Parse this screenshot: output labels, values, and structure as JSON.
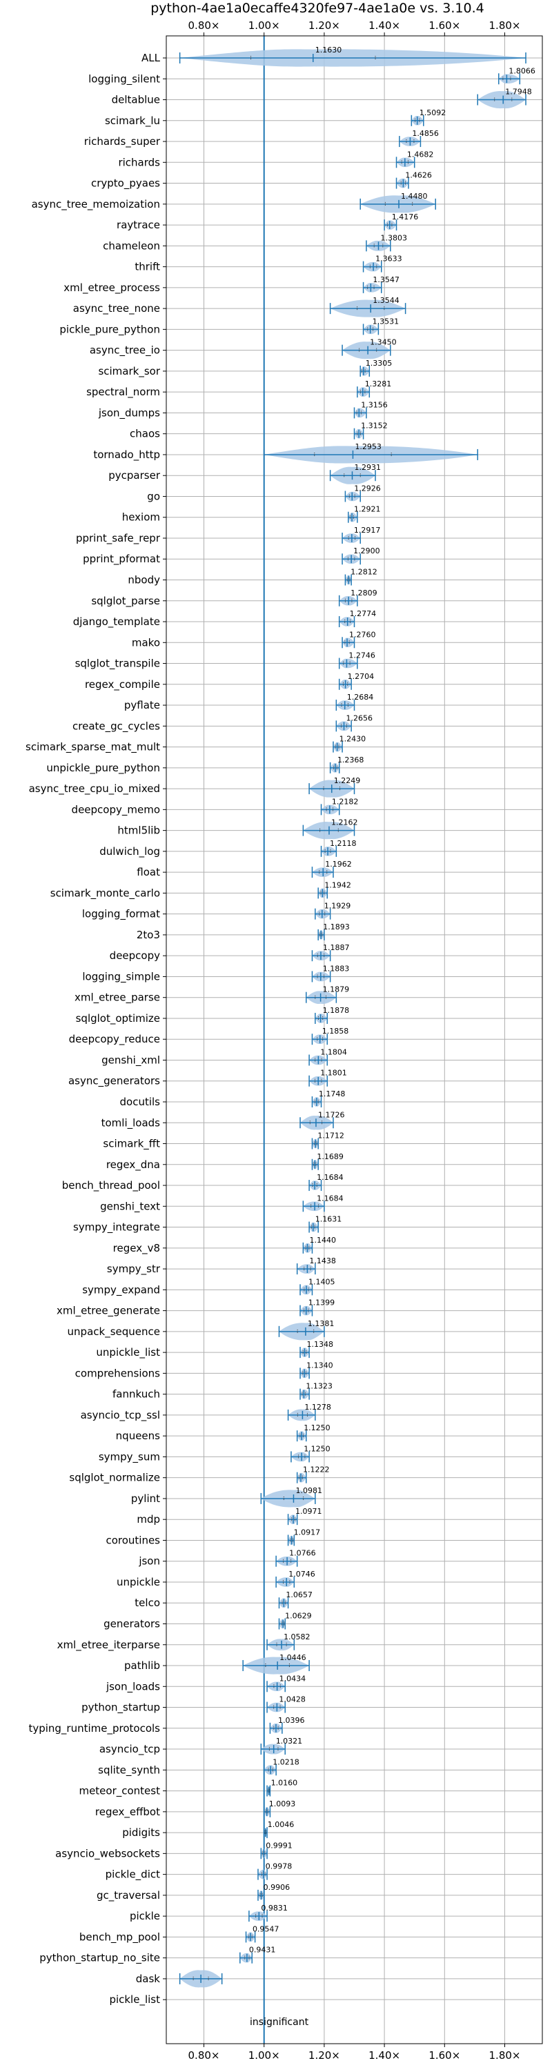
{
  "chart_data": {
    "type": "violin",
    "title": "python-4ae1a0ecaffe4320fe97-4ae1a0e vs. 3.10.4",
    "xlabel": "",
    "ylabel": "",
    "xlim": [
      0.675,
      1.925
    ],
    "x_ticks": [
      0.8,
      1.0,
      1.2,
      1.4,
      1.6,
      1.8
    ],
    "x_tick_labels": [
      "0.80×",
      "1.00×",
      "1.20×",
      "1.40×",
      "1.60×",
      "1.80×"
    ],
    "reference_line": 1.0,
    "grid": true,
    "color": "#1f77b4",
    "fill_color": "#a9c8e6",
    "insignificant_note": "insignificant",
    "benchmarks": [
      {
        "name": "ALL",
        "value": 1.163,
        "label": "1.1630",
        "min": 0.72,
        "max": 1.87
      },
      {
        "name": "logging_silent",
        "value": 1.8066,
        "label": "1.8066",
        "min": 1.78,
        "max": 1.85
      },
      {
        "name": "deltablue",
        "value": 1.7948,
        "label": "1.7948",
        "min": 1.71,
        "max": 1.87
      },
      {
        "name": "scimark_lu",
        "value": 1.5092,
        "label": "1.5092",
        "min": 1.49,
        "max": 1.53
      },
      {
        "name": "richards_super",
        "value": 1.4856,
        "label": "1.4856",
        "min": 1.45,
        "max": 1.52
      },
      {
        "name": "richards",
        "value": 1.4682,
        "label": "1.4682",
        "min": 1.44,
        "max": 1.5
      },
      {
        "name": "crypto_pyaes",
        "value": 1.4626,
        "label": "1.4626",
        "min": 1.44,
        "max": 1.48
      },
      {
        "name": "async_tree_memoization",
        "value": 1.448,
        "label": "1.4480",
        "min": 1.32,
        "max": 1.57
      },
      {
        "name": "raytrace",
        "value": 1.4176,
        "label": "1.4176",
        "min": 1.4,
        "max": 1.44
      },
      {
        "name": "chameleon",
        "value": 1.3803,
        "label": "1.3803",
        "min": 1.34,
        "max": 1.42
      },
      {
        "name": "thrift",
        "value": 1.3633,
        "label": "1.3633",
        "min": 1.33,
        "max": 1.39
      },
      {
        "name": "xml_etree_process",
        "value": 1.3547,
        "label": "1.3547",
        "min": 1.33,
        "max": 1.39
      },
      {
        "name": "async_tree_none",
        "value": 1.3544,
        "label": "1.3544",
        "min": 1.22,
        "max": 1.47
      },
      {
        "name": "pickle_pure_python",
        "value": 1.3531,
        "label": "1.3531",
        "min": 1.33,
        "max": 1.38
      },
      {
        "name": "async_tree_io",
        "value": 1.345,
        "label": "1.3450",
        "min": 1.26,
        "max": 1.42
      },
      {
        "name": "scimark_sor",
        "value": 1.3305,
        "label": "1.3305",
        "min": 1.32,
        "max": 1.35
      },
      {
        "name": "spectral_norm",
        "value": 1.3281,
        "label": "1.3281",
        "min": 1.31,
        "max": 1.35
      },
      {
        "name": "json_dumps",
        "value": 1.3156,
        "label": "1.3156",
        "min": 1.3,
        "max": 1.34
      },
      {
        "name": "chaos",
        "value": 1.3152,
        "label": "1.3152",
        "min": 1.3,
        "max": 1.33
      },
      {
        "name": "tornado_http",
        "value": 1.2953,
        "label": "1.2953",
        "min": 1.0,
        "max": 1.71
      },
      {
        "name": "pycparser",
        "value": 1.2931,
        "label": "1.2931",
        "min": 1.22,
        "max": 1.37
      },
      {
        "name": "go",
        "value": 1.2926,
        "label": "1.2926",
        "min": 1.27,
        "max": 1.32
      },
      {
        "name": "hexiom",
        "value": 1.2921,
        "label": "1.2921",
        "min": 1.28,
        "max": 1.31
      },
      {
        "name": "pprint_safe_repr",
        "value": 1.2917,
        "label": "1.2917",
        "min": 1.26,
        "max": 1.32
      },
      {
        "name": "pprint_pformat",
        "value": 1.29,
        "label": "1.2900",
        "min": 1.26,
        "max": 1.32
      },
      {
        "name": "nbody",
        "value": 1.2812,
        "label": "1.2812",
        "min": 1.27,
        "max": 1.29
      },
      {
        "name": "sqlglot_parse",
        "value": 1.2809,
        "label": "1.2809",
        "min": 1.25,
        "max": 1.31
      },
      {
        "name": "django_template",
        "value": 1.2774,
        "label": "1.2774",
        "min": 1.25,
        "max": 1.3
      },
      {
        "name": "mako",
        "value": 1.276,
        "label": "1.2760",
        "min": 1.26,
        "max": 1.3
      },
      {
        "name": "sqlglot_transpile",
        "value": 1.2746,
        "label": "1.2746",
        "min": 1.25,
        "max": 1.31
      },
      {
        "name": "regex_compile",
        "value": 1.2704,
        "label": "1.2704",
        "min": 1.25,
        "max": 1.29
      },
      {
        "name": "pyflate",
        "value": 1.2684,
        "label": "1.2684",
        "min": 1.24,
        "max": 1.3
      },
      {
        "name": "create_gc_cycles",
        "value": 1.2656,
        "label": "1.2656",
        "min": 1.24,
        "max": 1.29
      },
      {
        "name": "scimark_sparse_mat_mult",
        "value": 1.243,
        "label": "1.2430",
        "min": 1.23,
        "max": 1.26
      },
      {
        "name": "unpickle_pure_python",
        "value": 1.2368,
        "label": "1.2368",
        "min": 1.22,
        "max": 1.25
      },
      {
        "name": "async_tree_cpu_io_mixed",
        "value": 1.2249,
        "label": "1.2249",
        "min": 1.15,
        "max": 1.3
      },
      {
        "name": "deepcopy_memo",
        "value": 1.2182,
        "label": "1.2182",
        "min": 1.19,
        "max": 1.25
      },
      {
        "name": "html5lib",
        "value": 1.2162,
        "label": "1.2162",
        "min": 1.13,
        "max": 1.3
      },
      {
        "name": "dulwich_log",
        "value": 1.2118,
        "label": "1.2118",
        "min": 1.19,
        "max": 1.24
      },
      {
        "name": "float",
        "value": 1.1962,
        "label": "1.1962",
        "min": 1.16,
        "max": 1.23
      },
      {
        "name": "scimark_monte_carlo",
        "value": 1.1942,
        "label": "1.1942",
        "min": 1.18,
        "max": 1.21
      },
      {
        "name": "logging_format",
        "value": 1.1929,
        "label": "1.1929",
        "min": 1.17,
        "max": 1.22
      },
      {
        "name": "2to3",
        "value": 1.1893,
        "label": "1.1893",
        "min": 1.18,
        "max": 1.2
      },
      {
        "name": "deepcopy",
        "value": 1.1887,
        "label": "1.1887",
        "min": 1.16,
        "max": 1.22
      },
      {
        "name": "logging_simple",
        "value": 1.1883,
        "label": "1.1883",
        "min": 1.16,
        "max": 1.22
      },
      {
        "name": "xml_etree_parse",
        "value": 1.1879,
        "label": "1.1879",
        "min": 1.14,
        "max": 1.24
      },
      {
        "name": "sqlglot_optimize",
        "value": 1.1878,
        "label": "1.1878",
        "min": 1.17,
        "max": 1.21
      },
      {
        "name": "deepcopy_reduce",
        "value": 1.1858,
        "label": "1.1858",
        "min": 1.16,
        "max": 1.21
      },
      {
        "name": "genshi_xml",
        "value": 1.1804,
        "label": "1.1804",
        "min": 1.15,
        "max": 1.21
      },
      {
        "name": "async_generators",
        "value": 1.1801,
        "label": "1.1801",
        "min": 1.15,
        "max": 1.21
      },
      {
        "name": "docutils",
        "value": 1.1748,
        "label": "1.1748",
        "min": 1.16,
        "max": 1.19
      },
      {
        "name": "tomli_loads",
        "value": 1.1726,
        "label": "1.1726",
        "min": 1.12,
        "max": 1.23
      },
      {
        "name": "scimark_fft",
        "value": 1.1712,
        "label": "1.1712",
        "min": 1.16,
        "max": 1.18
      },
      {
        "name": "regex_dna",
        "value": 1.1689,
        "label": "1.1689",
        "min": 1.16,
        "max": 1.18
      },
      {
        "name": "bench_thread_pool",
        "value": 1.1684,
        "label": "1.1684",
        "min": 1.15,
        "max": 1.19
      },
      {
        "name": "genshi_text",
        "value": 1.1684,
        "label": "1.1684",
        "min": 1.13,
        "max": 1.2
      },
      {
        "name": "sympy_integrate",
        "value": 1.1631,
        "label": "1.1631",
        "min": 1.15,
        "max": 1.18
      },
      {
        "name": "regex_v8",
        "value": 1.144,
        "label": "1.1440",
        "min": 1.13,
        "max": 1.16
      },
      {
        "name": "sympy_str",
        "value": 1.1438,
        "label": "1.1438",
        "min": 1.11,
        "max": 1.17
      },
      {
        "name": "sympy_expand",
        "value": 1.1405,
        "label": "1.1405",
        "min": 1.12,
        "max": 1.16
      },
      {
        "name": "xml_etree_generate",
        "value": 1.1399,
        "label": "1.1399",
        "min": 1.12,
        "max": 1.16
      },
      {
        "name": "unpack_sequence",
        "value": 1.1381,
        "label": "1.1381",
        "min": 1.05,
        "max": 1.2
      },
      {
        "name": "unpickle_list",
        "value": 1.1348,
        "label": "1.1348",
        "min": 1.12,
        "max": 1.15
      },
      {
        "name": "comprehensions",
        "value": 1.134,
        "label": "1.1340",
        "min": 1.12,
        "max": 1.15
      },
      {
        "name": "fannkuch",
        "value": 1.1323,
        "label": "1.1323",
        "min": 1.12,
        "max": 1.15
      },
      {
        "name": "asyncio_tcp_ssl",
        "value": 1.1278,
        "label": "1.1278",
        "min": 1.08,
        "max": 1.17
      },
      {
        "name": "nqueens",
        "value": 1.125,
        "label": "1.1250",
        "min": 1.11,
        "max": 1.14
      },
      {
        "name": "sympy_sum",
        "value": 1.125,
        "label": "1.1250",
        "min": 1.09,
        "max": 1.15
      },
      {
        "name": "sqlglot_normalize",
        "value": 1.1222,
        "label": "1.1222",
        "min": 1.11,
        "max": 1.14
      },
      {
        "name": "pylint",
        "value": 1.0981,
        "label": "1.0981",
        "min": 0.99,
        "max": 1.17
      },
      {
        "name": "mdp",
        "value": 1.0971,
        "label": "1.0971",
        "min": 1.08,
        "max": 1.11
      },
      {
        "name": "coroutines",
        "value": 1.0917,
        "label": "1.0917",
        "min": 1.08,
        "max": 1.1
      },
      {
        "name": "json",
        "value": 1.0766,
        "label": "1.0766",
        "min": 1.04,
        "max": 1.11
      },
      {
        "name": "unpickle",
        "value": 1.0746,
        "label": "1.0746",
        "min": 1.04,
        "max": 1.1
      },
      {
        "name": "telco",
        "value": 1.0657,
        "label": "1.0657",
        "min": 1.05,
        "max": 1.08
      },
      {
        "name": "generators",
        "value": 1.0629,
        "label": "1.0629",
        "min": 1.05,
        "max": 1.07
      },
      {
        "name": "xml_etree_iterparse",
        "value": 1.0582,
        "label": "1.0582",
        "min": 1.01,
        "max": 1.1
      },
      {
        "name": "pathlib",
        "value": 1.0446,
        "label": "1.0446",
        "min": 0.93,
        "max": 1.15
      },
      {
        "name": "json_loads",
        "value": 1.0434,
        "label": "1.0434",
        "min": 1.01,
        "max": 1.07
      },
      {
        "name": "python_startup",
        "value": 1.0428,
        "label": "1.0428",
        "min": 1.01,
        "max": 1.07
      },
      {
        "name": "typing_runtime_protocols",
        "value": 1.0396,
        "label": "1.0396",
        "min": 1.02,
        "max": 1.06
      },
      {
        "name": "asyncio_tcp",
        "value": 1.0321,
        "label": "1.0321",
        "min": 0.99,
        "max": 1.07
      },
      {
        "name": "sqlite_synth",
        "value": 1.0218,
        "label": "1.0218",
        "min": 1.0,
        "max": 1.04
      },
      {
        "name": "meteor_contest",
        "value": 1.016,
        "label": "1.0160",
        "min": 1.01,
        "max": 1.02
      },
      {
        "name": "regex_effbot",
        "value": 1.0093,
        "label": "1.0093",
        "min": 1.0,
        "max": 1.02
      },
      {
        "name": "pidigits",
        "value": 1.0046,
        "label": "1.0046",
        "min": 1.0,
        "max": 1.01
      },
      {
        "name": "asyncio_websockets",
        "value": 0.9991,
        "label": "0.9991",
        "min": 0.99,
        "max": 1.01
      },
      {
        "name": "pickle_dict",
        "value": 0.9978,
        "label": "0.9978",
        "min": 0.98,
        "max": 1.01
      },
      {
        "name": "gc_traversal",
        "value": 0.9906,
        "label": "0.9906",
        "min": 0.98,
        "max": 1.0
      },
      {
        "name": "pickle",
        "value": 0.9831,
        "label": "0.9831",
        "min": 0.95,
        "max": 1.01
      },
      {
        "name": "bench_mp_pool",
        "value": 0.9547,
        "label": "0.9547",
        "min": 0.94,
        "max": 0.97
      },
      {
        "name": "python_startup_no_site",
        "value": 0.9431,
        "label": "0.9431",
        "min": 0.92,
        "max": 0.96
      },
      {
        "name": "dask",
        "value": 0.79,
        "label": "",
        "min": 0.72,
        "max": 0.86
      },
      {
        "name": "pickle_list",
        "value": null,
        "label": "",
        "min": null,
        "max": null
      }
    ]
  }
}
